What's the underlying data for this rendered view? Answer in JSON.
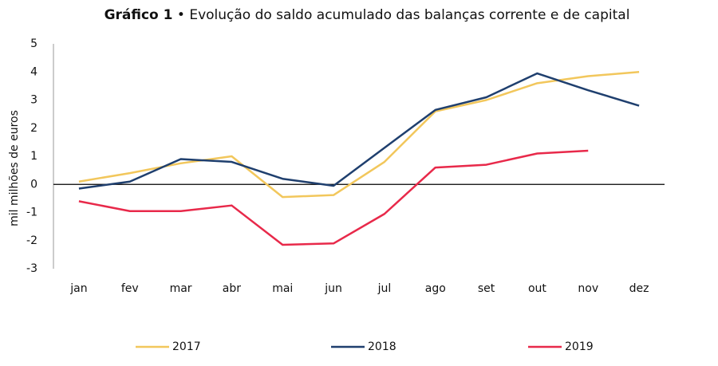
{
  "chart_data": {
    "type": "line",
    "title_number": "Gráfico 1",
    "title": "• Evolução do saldo acumulado das balanças corrente e de capital",
    "y_label": "mil milhões de euros",
    "categories": [
      "jan",
      "fev",
      "mar",
      "abr",
      "mai",
      "jun",
      "jul",
      "ago",
      "set",
      "out",
      "nov",
      "dez"
    ],
    "series": [
      {
        "name": "2017",
        "color": "#f2c75c",
        "values": [
          0.1,
          0.4,
          0.75,
          1.0,
          -0.45,
          -0.38,
          0.8,
          2.6,
          3.0,
          3.6,
          3.85,
          4.0
        ]
      },
      {
        "name": "2018",
        "color": "#1f3f6e",
        "values": [
          -0.15,
          0.1,
          0.9,
          0.8,
          0.2,
          -0.05,
          1.3,
          2.65,
          3.1,
          3.95,
          3.35,
          2.8
        ]
      },
      {
        "name": "2019",
        "color": "#e8294a",
        "values": [
          -0.6,
          -0.95,
          -0.95,
          -0.75,
          -2.15,
          -2.1,
          -1.05,
          0.6,
          0.7,
          1.1,
          1.2,
          null
        ]
      }
    ],
    "ylim": [
      -3,
      5
    ],
    "yticks": [
      -3,
      -2,
      -1,
      0,
      1,
      2,
      3,
      4,
      5
    ],
    "grid": false,
    "legend": "bottom"
  }
}
